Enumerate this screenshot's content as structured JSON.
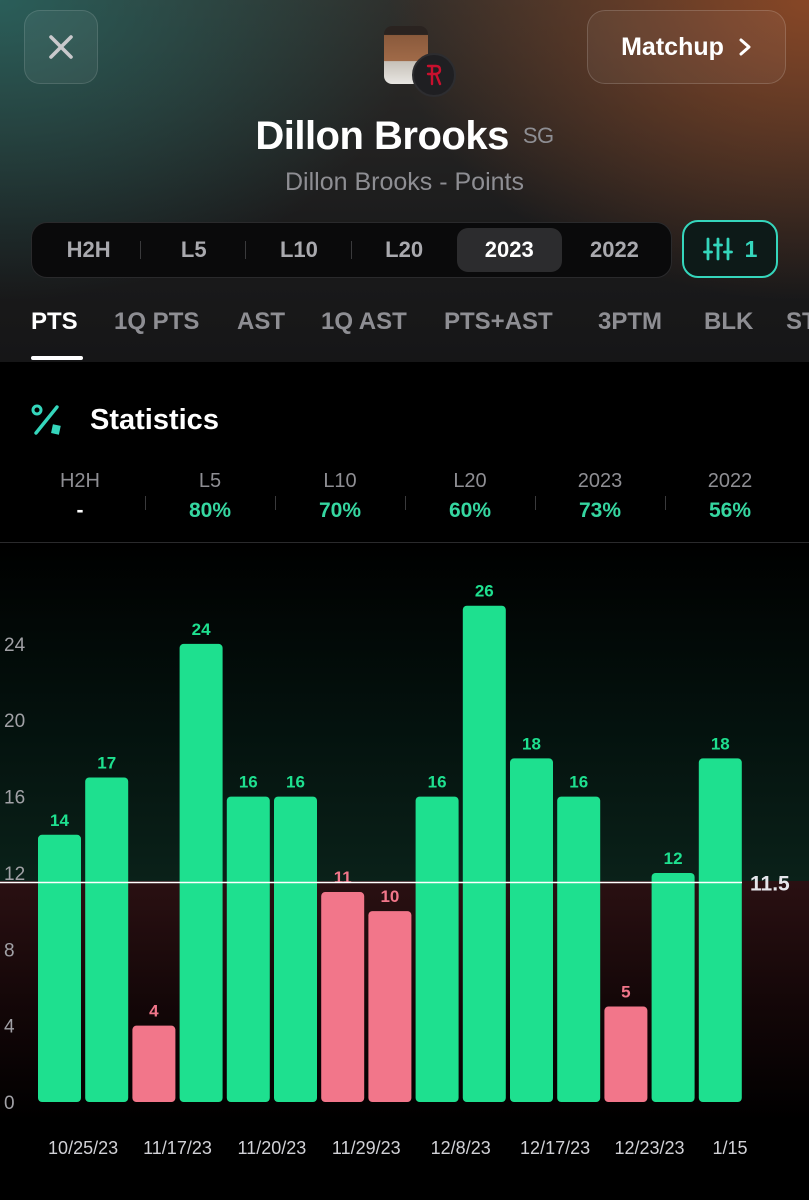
{
  "header": {
    "close_icon": "close-icon",
    "matchup_label": "Matchup",
    "player_name": "Dillon Brooks",
    "position": "SG",
    "subtitle": "Dillon Brooks - Points",
    "range_filters": [
      "H2H",
      "L5",
      "L10",
      "L20",
      "2023",
      "2022"
    ],
    "active_range": "2023",
    "filter_count": "1",
    "stat_tabs": [
      "PTS",
      "1Q PTS",
      "AST",
      "1Q AST",
      "PTS+AST",
      "3PTM",
      "BLK",
      "ST"
    ],
    "active_tab": "PTS"
  },
  "statistics": {
    "title": "Statistics",
    "columns": [
      {
        "label": "H2H",
        "value": "-"
      },
      {
        "label": "L5",
        "value": "80%"
      },
      {
        "label": "L10",
        "value": "70%"
      },
      {
        "label": "L20",
        "value": "60%"
      },
      {
        "label": "2023",
        "value": "73%"
      },
      {
        "label": "2022",
        "value": "56%"
      }
    ]
  },
  "colors": {
    "over": "#1ee08f",
    "under": "#f2768a",
    "accent": "#35d6bc"
  },
  "chart_data": {
    "type": "bar",
    "values": [
      14,
      17,
      4,
      24,
      16,
      16,
      11,
      10,
      16,
      26,
      18,
      16,
      5,
      12,
      18
    ],
    "x_labels": [
      "10/25/23",
      "11/17/23",
      "11/20/23",
      "11/29/23",
      "12/8/23",
      "12/17/23",
      "12/23/23",
      "1/15"
    ],
    "x_label_every": 2,
    "y_ticks": [
      0,
      4,
      8,
      12,
      16,
      20,
      24
    ],
    "ylim": [
      0,
      28.5
    ],
    "line": {
      "value": 11.5,
      "label": "11.5"
    }
  }
}
